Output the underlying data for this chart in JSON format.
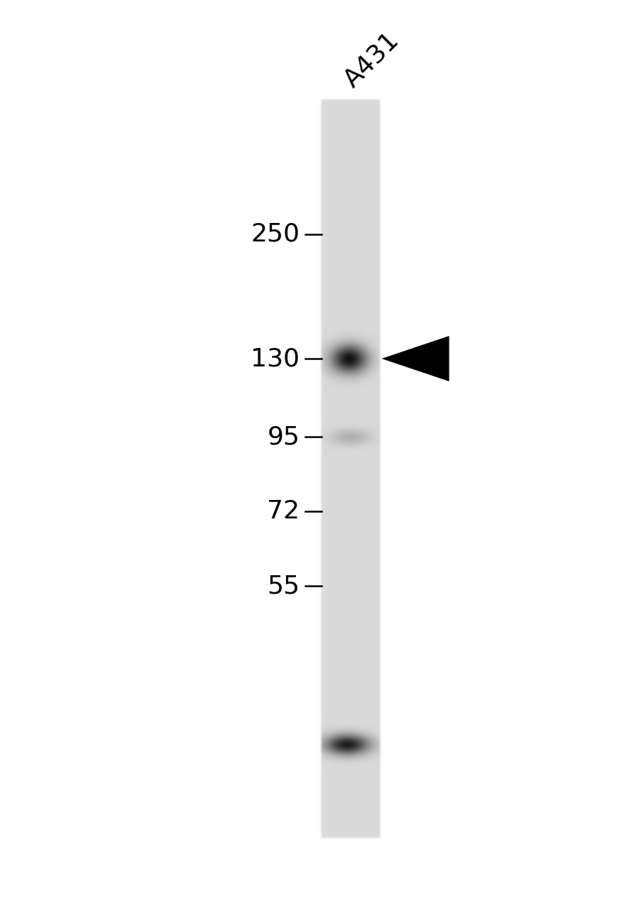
{
  "background_color": "#ffffff",
  "fig_width": 9.04,
  "fig_height": 12.8,
  "dpi": 100,
  "lane_label": "A431",
  "lane_label_fontsize": 26,
  "lane_label_rotation": 45,
  "marker_labels": [
    "250",
    "130",
    "95",
    "72",
    "55"
  ],
  "marker_fontsize": 26,
  "gel_gray": 0.855,
  "band_130_kda_dark": 0.08,
  "band_95_kda_dark": 0.8,
  "band_lower_dark": 0.12
}
